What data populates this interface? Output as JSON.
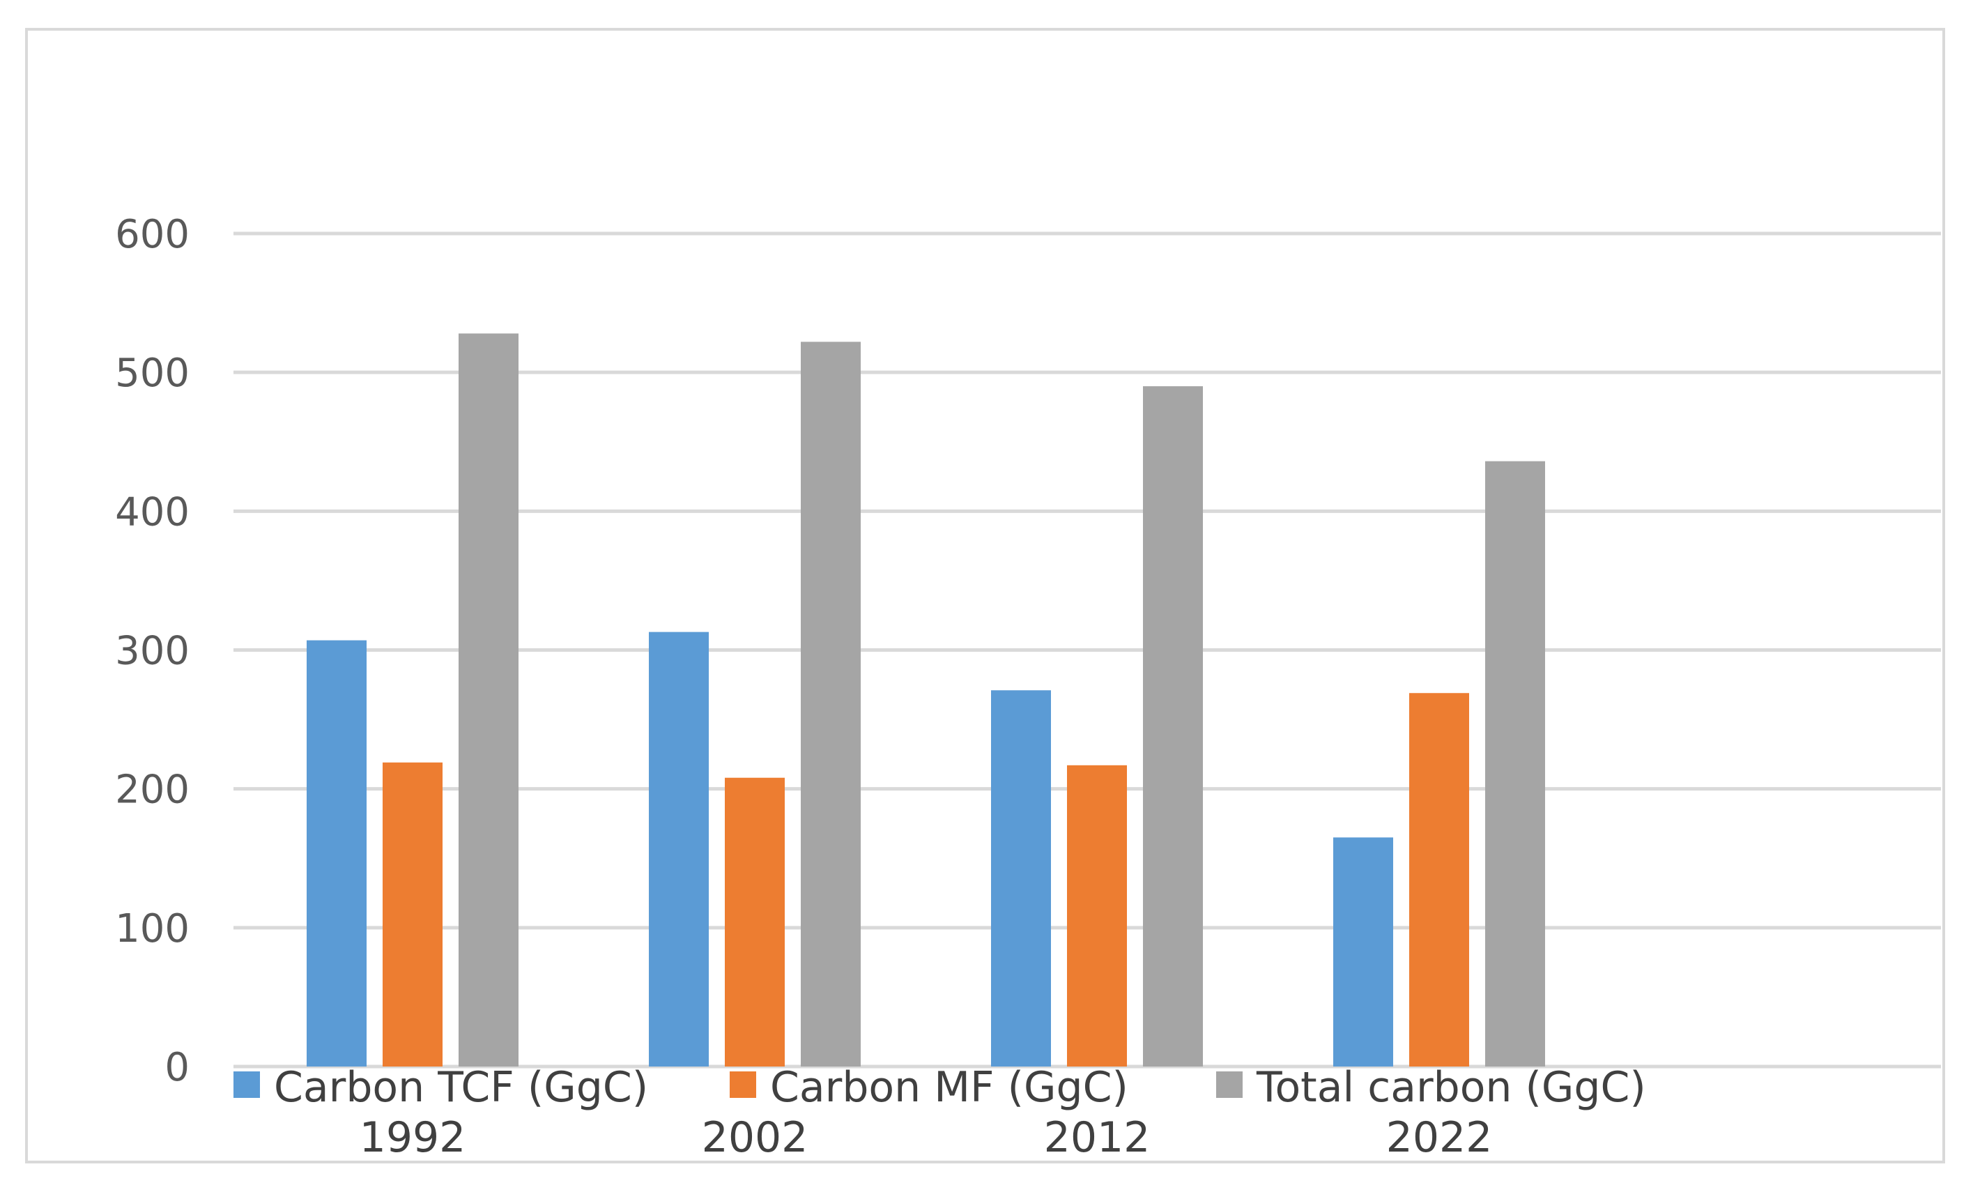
{
  "chart_data": {
    "type": "bar",
    "title": "",
    "xlabel": "",
    "ylabel": "",
    "categories": [
      "1992",
      "2002",
      "2012",
      "2022"
    ],
    "series": [
      {
        "name": "Carbon TCF (GgC)",
        "color": "#5B9BD5",
        "values": [
          307,
          313,
          271,
          165
        ]
      },
      {
        "name": "Carbon MF (GgC)",
        "color": "#ED7D31",
        "values": [
          219,
          208,
          217,
          269
        ]
      },
      {
        "name": "Total carbon (GgC)",
        "color": "#A5A5A5",
        "values": [
          528,
          522,
          490,
          436
        ]
      }
    ],
    "ylim": [
      0,
      600
    ],
    "yticks": [
      0,
      100,
      200,
      300,
      400,
      500,
      600
    ],
    "grid": true,
    "legend_position": "bottom"
  }
}
